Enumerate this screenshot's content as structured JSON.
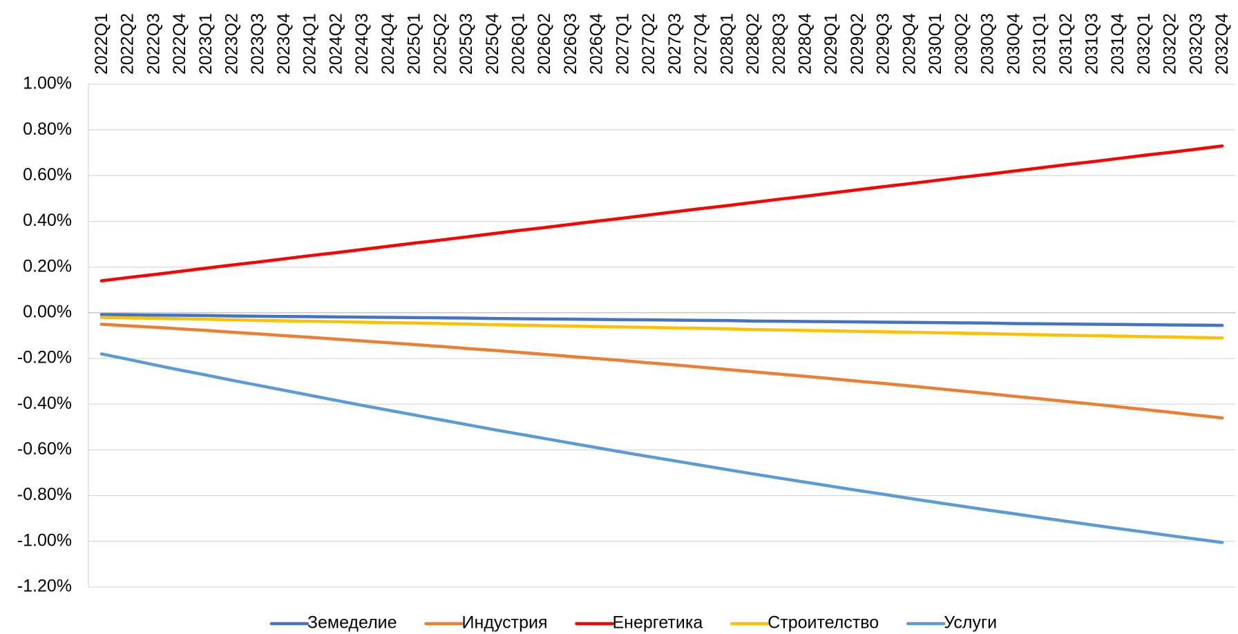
{
  "chart_data": {
    "type": "line",
    "categories": [
      "2022Q1",
      "2022Q2",
      "2022Q3",
      "2022Q4",
      "2023Q1",
      "2023Q2",
      "2023Q3",
      "2023Q4",
      "2024Q1",
      "2024Q2",
      "2024Q3",
      "2024Q4",
      "2025Q1",
      "2025Q2",
      "2025Q3",
      "2025Q4",
      "2026Q1",
      "2026Q2",
      "2026Q3",
      "2026Q4",
      "2027Q1",
      "2027Q2",
      "2027Q3",
      "2027Q4",
      "2028Q1",
      "2028Q2",
      "2028Q3",
      "2028Q4",
      "2029Q1",
      "2029Q2",
      "2029Q3",
      "2029Q4",
      "2030Q1",
      "2030Q2",
      "2030Q3",
      "2030Q4",
      "2031Q1",
      "2031Q2",
      "2031Q3",
      "2031Q4",
      "2032Q1",
      "2032Q2",
      "2032Q3",
      "2032Q4"
    ],
    "series": [
      {
        "name": "Земеделие",
        "color": "#4472c4",
        "values": [
          -0.008,
          -0.009,
          -0.01,
          -0.011,
          -0.012,
          -0.014,
          -0.015,
          -0.016,
          -0.017,
          -0.018,
          -0.019,
          -0.02,
          -0.021,
          -0.022,
          -0.023,
          -0.025,
          -0.026,
          -0.027,
          -0.028,
          -0.029,
          -0.03,
          -0.031,
          -0.032,
          -0.033,
          -0.034,
          -0.036,
          -0.037,
          -0.038,
          -0.039,
          -0.04,
          -0.041,
          -0.042,
          -0.043,
          -0.044,
          -0.045,
          -0.047,
          -0.048,
          -0.049,
          -0.05,
          -0.051,
          -0.052,
          -0.053,
          -0.054,
          -0.055
        ]
      },
      {
        "name": "Индустрия",
        "color": "#ed7d31",
        "values": [
          -0.05,
          -0.057,
          -0.063,
          -0.07,
          -0.077,
          -0.085,
          -0.092,
          -0.1,
          -0.107,
          -0.115,
          -0.123,
          -0.131,
          -0.139,
          -0.147,
          -0.156,
          -0.164,
          -0.173,
          -0.182,
          -0.191,
          -0.2,
          -0.209,
          -0.219,
          -0.228,
          -0.238,
          -0.248,
          -0.258,
          -0.268,
          -0.278,
          -0.288,
          -0.299,
          -0.309,
          -0.32,
          -0.331,
          -0.342,
          -0.353,
          -0.365,
          -0.376,
          -0.388,
          -0.399,
          -0.411,
          -0.423,
          -0.435,
          -0.448,
          -0.46
        ]
      },
      {
        "name": "Енергетика",
        "color": "#ff0000",
        "values": [
          0.14,
          0.154,
          0.167,
          0.181,
          0.195,
          0.209,
          0.222,
          0.236,
          0.25,
          0.263,
          0.277,
          0.291,
          0.305,
          0.318,
          0.332,
          0.346,
          0.36,
          0.373,
          0.387,
          0.401,
          0.414,
          0.428,
          0.442,
          0.456,
          0.469,
          0.483,
          0.497,
          0.51,
          0.524,
          0.538,
          0.552,
          0.565,
          0.579,
          0.593,
          0.606,
          0.62,
          0.634,
          0.648,
          0.661,
          0.675,
          0.689,
          0.702,
          0.716,
          0.73
        ]
      },
      {
        "name": "Строителство",
        "color": "#ffc000",
        "values": [
          -0.02,
          -0.022,
          -0.024,
          -0.026,
          -0.028,
          -0.031,
          -0.033,
          -0.035,
          -0.037,
          -0.039,
          -0.041,
          -0.043,
          -0.045,
          -0.047,
          -0.049,
          -0.052,
          -0.054,
          -0.056,
          -0.058,
          -0.06,
          -0.062,
          -0.064,
          -0.066,
          -0.068,
          -0.07,
          -0.073,
          -0.075,
          -0.077,
          -0.079,
          -0.081,
          -0.083,
          -0.085,
          -0.087,
          -0.089,
          -0.091,
          -0.094,
          -0.096,
          -0.098,
          -0.1,
          -0.102,
          -0.104,
          -0.106,
          -0.108,
          -0.11
        ]
      },
      {
        "name": "Услуги",
        "color": "#5b9bd5",
        "values": [
          -0.18,
          -0.203,
          -0.227,
          -0.25,
          -0.272,
          -0.295,
          -0.317,
          -0.339,
          -0.361,
          -0.383,
          -0.405,
          -0.426,
          -0.447,
          -0.468,
          -0.489,
          -0.51,
          -0.53,
          -0.55,
          -0.57,
          -0.59,
          -0.61,
          -0.629,
          -0.648,
          -0.667,
          -0.686,
          -0.705,
          -0.723,
          -0.741,
          -0.759,
          -0.777,
          -0.794,
          -0.812,
          -0.829,
          -0.846,
          -0.863,
          -0.879,
          -0.896,
          -0.912,
          -0.928,
          -0.944,
          -0.959,
          -0.975,
          -0.99,
          -1.005
        ]
      }
    ],
    "ylim": [
      -1.2,
      1.0
    ],
    "yticks": [
      {
        "value": -1.2,
        "label": "-1.20%"
      },
      {
        "value": -1.0,
        "label": "-1.00%"
      },
      {
        "value": -0.8,
        "label": "-0.80%"
      },
      {
        "value": -0.6,
        "label": "-0.60%"
      },
      {
        "value": -0.4,
        "label": "-0.40%"
      },
      {
        "value": -0.2,
        "label": "-0.20%"
      },
      {
        "value": 0,
        "label": "0.00%"
      },
      {
        "value": 0.2,
        "label": "0.20%"
      },
      {
        "value": 0.4,
        "label": "0.40%"
      },
      {
        "value": 0.6,
        "label": "0.60%"
      },
      {
        "value": 0.8,
        "label": "0.80%"
      },
      {
        "value": 1.0,
        "label": "1.00%"
      }
    ],
    "grid": true,
    "legend": "bottom"
  }
}
